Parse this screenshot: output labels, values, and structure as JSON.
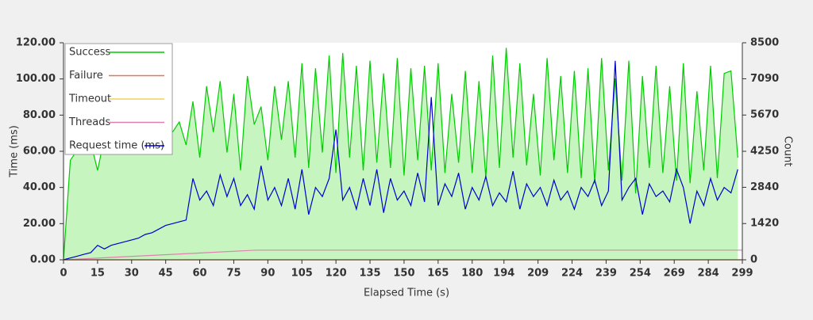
{
  "chart_data": {
    "type": "line",
    "xlabel": "Elapsed Time (s)",
    "ylabel": "Time (ms)",
    "y2label": "Count",
    "xlim": [
      0,
      299
    ],
    "ylim": [
      0,
      120
    ],
    "y2lim": [
      0,
      8500
    ],
    "xticks": [
      0,
      15,
      30,
      45,
      60,
      75,
      90,
      105,
      120,
      135,
      150,
      165,
      180,
      194,
      209,
      224,
      239,
      254,
      269,
      284,
      299
    ],
    "yticks": [
      {
        "value": 0,
        "label": "0.00"
      },
      {
        "value": 20,
        "label": "20.00"
      },
      {
        "value": 40,
        "label": "40.00"
      },
      {
        "value": 60,
        "label": "60.00"
      },
      {
        "value": 80,
        "label": "80.00"
      },
      {
        "value": 100,
        "label": "100.00"
      },
      {
        "value": 120,
        "label": "120.00"
      }
    ],
    "y2ticks": [
      0,
      1420,
      2840,
      4250,
      5670,
      7090,
      8500
    ],
    "legend": "upper left",
    "grid": false,
    "series": [
      {
        "name": "Success",
        "color": "#00cc00",
        "fill": "#c6f5c0",
        "axis": "y2",
        "x": [
          0,
          3,
          6,
          9,
          12,
          15,
          18,
          21,
          24,
          27,
          30,
          33,
          36,
          39,
          42,
          45,
          48,
          51,
          54,
          57,
          60,
          63,
          66,
          69,
          72,
          75,
          78,
          81,
          84,
          87,
          90,
          93,
          96,
          99,
          102,
          105,
          108,
          111,
          114,
          117,
          120,
          123,
          126,
          129,
          132,
          135,
          138,
          141,
          144,
          147,
          150,
          153,
          156,
          159,
          162,
          165,
          168,
          171,
          174,
          177,
          180,
          183,
          186,
          189,
          192,
          195,
          198,
          201,
          204,
          207,
          210,
          213,
          216,
          219,
          222,
          225,
          228,
          231,
          234,
          237,
          240,
          243,
          246,
          249,
          252,
          255,
          258,
          261,
          264,
          267,
          270,
          273,
          276,
          279,
          282,
          285,
          288,
          291,
          294,
          297
        ],
        "values": [
          0,
          3900,
          4300,
          4500,
          4600,
          3500,
          4800,
          4600,
          5200,
          4500,
          4900,
          5000,
          4600,
          5500,
          4700,
          5800,
          5000,
          5400,
          4500,
          6200,
          4000,
          6800,
          5000,
          7000,
          4200,
          6500,
          3500,
          7200,
          5300,
          6000,
          3900,
          6800,
          4700,
          7000,
          4000,
          7700,
          3600,
          7500,
          4200,
          8000,
          3400,
          8100,
          4000,
          7600,
          3500,
          7800,
          3800,
          7300,
          3600,
          7900,
          3300,
          7500,
          3900,
          7600,
          3500,
          7700,
          3400,
          6500,
          3800,
          7400,
          3400,
          7000,
          3200,
          8000,
          3600,
          8300,
          4000,
          7700,
          3700,
          6500,
          3300,
          7900,
          3900,
          7200,
          3400,
          7400,
          3200,
          7500,
          3000,
          7900,
          3500,
          7100,
          3100,
          7800,
          2600,
          7200,
          3600,
          7600,
          3400,
          6800,
          3100,
          7700,
          3000,
          6600,
          3500,
          7600,
          3200,
          7300,
          7400,
          4000
        ]
      },
      {
        "name": "Failure",
        "color": "#e8735a",
        "axis": "y2",
        "x": [
          0,
          299
        ],
        "values": [
          0,
          0
        ]
      },
      {
        "name": "Timeout",
        "color": "#f0d060",
        "axis": "y2",
        "x": [
          0,
          299
        ],
        "values": [
          0,
          0
        ]
      },
      {
        "name": "Threads",
        "color": "#e080b0",
        "axis": "y2",
        "x": [
          0,
          85,
          299
        ],
        "values": [
          0,
          380,
          380
        ]
      },
      {
        "name": "Request time (ms)",
        "color": "#0000cc",
        "axis": "y",
        "x": [
          0,
          3,
          6,
          9,
          12,
          15,
          18,
          21,
          24,
          27,
          30,
          33,
          36,
          39,
          42,
          45,
          48,
          51,
          54,
          57,
          60,
          63,
          66,
          69,
          72,
          75,
          78,
          81,
          84,
          87,
          90,
          93,
          96,
          99,
          102,
          105,
          108,
          111,
          114,
          117,
          120,
          123,
          126,
          129,
          132,
          135,
          138,
          141,
          144,
          147,
          150,
          153,
          156,
          159,
          162,
          165,
          168,
          171,
          174,
          177,
          180,
          183,
          186,
          189,
          192,
          195,
          198,
          201,
          204,
          207,
          210,
          213,
          216,
          219,
          222,
          225,
          228,
          231,
          234,
          237,
          240,
          243,
          246,
          249,
          252,
          255,
          258,
          261,
          264,
          267,
          270,
          273,
          276,
          279,
          282,
          285,
          288,
          291,
          294,
          297
        ],
        "values": [
          0,
          1,
          2,
          3,
          4,
          8,
          6,
          8,
          9,
          10,
          11,
          12,
          14,
          15,
          17,
          19,
          20,
          21,
          22,
          45,
          33,
          38,
          30,
          47,
          35,
          45,
          30,
          36,
          28,
          52,
          33,
          40,
          30,
          45,
          28,
          50,
          25,
          40,
          35,
          45,
          72,
          33,
          40,
          28,
          45,
          30,
          50,
          26,
          45,
          33,
          38,
          30,
          48,
          32,
          90,
          30,
          42,
          35,
          48,
          28,
          40,
          33,
          46,
          30,
          37,
          32,
          49,
          28,
          42,
          35,
          40,
          30,
          44,
          33,
          38,
          28,
          40,
          35,
          44,
          30,
          38,
          110,
          33,
          40,
          45,
          25,
          42,
          35,
          38,
          32,
          50,
          40,
          20,
          38,
          30,
          45,
          33,
          40,
          37,
          50
        ]
      }
    ]
  }
}
